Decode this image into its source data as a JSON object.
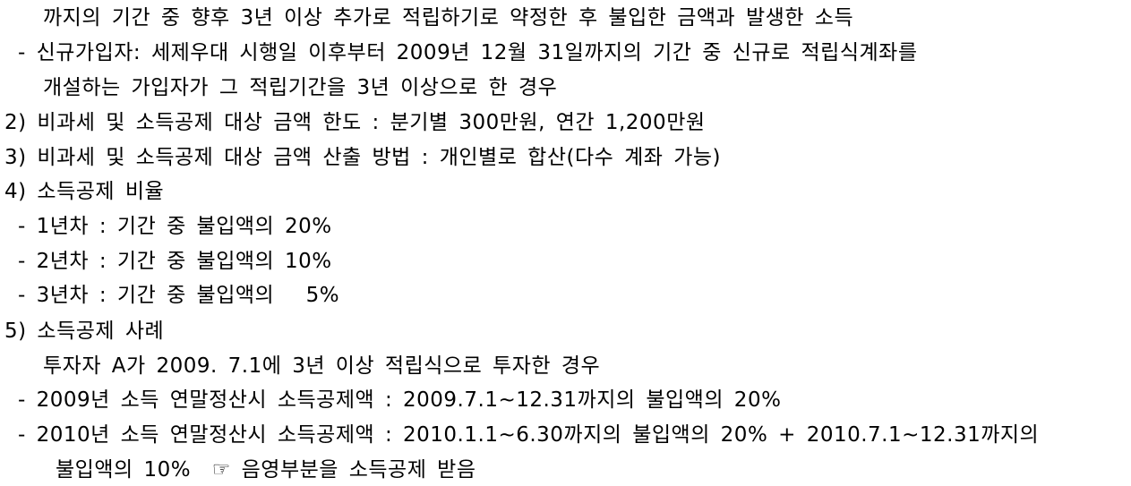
{
  "lines": [
    "까지의 기간 중 향후 3년 이상 추가로 적립하기로 약정한 후 불입한 금액과 발생한 소득",
    "- 신규가입자: 세제우대 시행일 이후부터 2009년 12월 31일까지의 기간 중 신규로 적립식계좌를",
    "개설하는 가입자가 그 적립기간을 3년 이상으로 한 경우",
    "2) 비과세 및 소득공제 대상 금액 한도 : 분기별 300만원, 연간 1,200만원",
    "3) 비과세 및 소득공제 대상 금액 산출 방법 : 개인별로 합산(다수 계좌 가능)",
    "4) 소득공제 비율",
    "- 1년차 : 기간 중 불입액의 20%",
    "- 2년차 : 기간 중 불입액의 10%",
    "- 3년차 : 기간 중 불입액의   5%",
    "5) 소득공제 사례",
    "투자자 A가 2009. 7.1에 3년 이상 적립식으로 투자한 경우",
    "- 2009년 소득 연말정산시 소득공제액 : 2009.7.1~12.31까지의 불입액의 20%",
    "- 2010년 소득 연말정산시 소득공제액 : 2010.1.1~6.30까지의 불입액의 20% + 2010.7.1~12.31까지의",
    "불입액의 10%  ☞ 음영부분을 소득공제 받음"
  ]
}
